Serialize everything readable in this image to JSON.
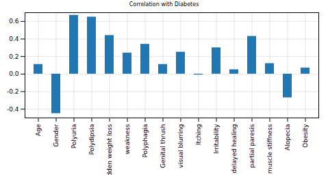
{
  "chart_data": {
    "type": "bar",
    "title": "Correlation with Diabetes",
    "categories": [
      "Age",
      "Gender",
      "Polyuria",
      "Polydipsia",
      "sudden weight loss",
      "weakness",
      "Polyphagia",
      "Genital thrush",
      "visual blurring",
      "Itching",
      "Irritability",
      "delayed healing",
      "partial paresis",
      "muscle stiffness",
      "Alopecia",
      "Obesity"
    ],
    "values": [
      0.11,
      -0.45,
      0.67,
      0.65,
      0.44,
      0.24,
      0.34,
      0.11,
      0.25,
      -0.01,
      0.3,
      0.05,
      0.43,
      0.12,
      -0.27,
      0.07
    ],
    "color": "#1f77b4",
    "ylim": [
      -0.5,
      0.7
    ],
    "yticks": [
      -0.4,
      -0.2,
      {
        "value": 0,
        "label": "0.0"
      },
      0.2,
      0.4,
      0.6
    ],
    "grid": true
  }
}
